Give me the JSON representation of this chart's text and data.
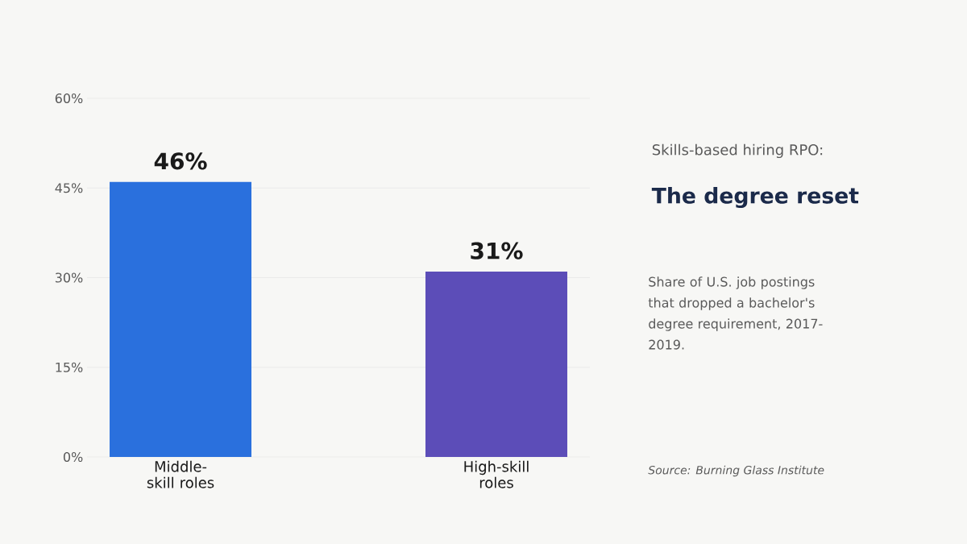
{
  "chart_data": {
    "type": "bar",
    "subtitle": "Skills-based hiring RPO:",
    "title": "The degree reset",
    "annotations": [
      "Share of U.S. job postings that dropped a bachelor's degree requirement, 2017-2019.",
      "Source: Burning Glass Institute"
    ],
    "categories": [
      "Middle-skill roles",
      "High-skill roles"
    ],
    "values": [
      46,
      31
    ],
    "value_labels": [
      "46%",
      "31%"
    ],
    "colors": [
      "#2a70dd",
      "#5c4db8"
    ],
    "ylim": [
      0,
      60
    ],
    "yticks": [
      {
        "value": 0,
        "label": "0%"
      },
      {
        "value": 15,
        "label": "15%"
      },
      {
        "value": 30,
        "label": "30%"
      },
      {
        "value": 45,
        "label": "45%"
      },
      {
        "value": 60,
        "label": "60%"
      }
    ],
    "grid": "y"
  }
}
